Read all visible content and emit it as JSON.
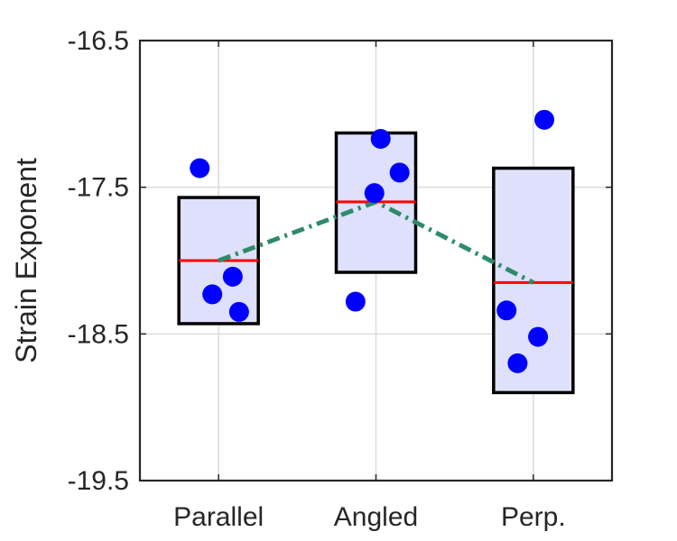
{
  "chart_data": {
    "type": "box-scatter",
    "ylabel": "Strain Exponent",
    "xlabel": "",
    "ylim": [
      -19.5,
      -16.5
    ],
    "yticks": [
      -16.5,
      -17.5,
      -18.5,
      -19.5
    ],
    "ytick_labels": [
      "-16.5",
      "-17.5",
      "-18.5",
      "-19.5"
    ],
    "grid": true,
    "categories": [
      "Parallel",
      "Angled",
      "Perp."
    ],
    "groups": [
      {
        "category": "Parallel",
        "box_low": -18.43,
        "box_high": -17.57,
        "center": -18.0,
        "points": [
          {
            "offset": -0.12,
            "y": -17.37
          },
          {
            "offset": 0.09,
            "y": -18.11
          },
          {
            "offset": -0.04,
            "y": -18.23
          },
          {
            "offset": 0.13,
            "y": -18.35
          }
        ]
      },
      {
        "category": "Angled",
        "box_low": -18.08,
        "box_high": -17.13,
        "center": -17.6,
        "points": [
          {
            "offset": 0.03,
            "y": -17.17
          },
          {
            "offset": 0.15,
            "y": -17.4
          },
          {
            "offset": -0.01,
            "y": -17.54
          },
          {
            "offset": -0.13,
            "y": -18.28
          }
        ]
      },
      {
        "category": "Perp.",
        "box_low": -18.9,
        "box_high": -17.37,
        "center": -18.15,
        "points": [
          {
            "offset": 0.07,
            "y": -17.04
          },
          {
            "offset": -0.17,
            "y": -18.34
          },
          {
            "offset": 0.03,
            "y": -18.52
          },
          {
            "offset": -0.1,
            "y": -18.7
          }
        ]
      }
    ],
    "colors": {
      "box_fill": "#dfe0fb",
      "box_stroke": "#000000",
      "center_line": "#ff0000",
      "points": "#0000ff",
      "trend_line": "#2e8b6a",
      "grid": "#dcdcdc",
      "axes": "#262626"
    }
  }
}
